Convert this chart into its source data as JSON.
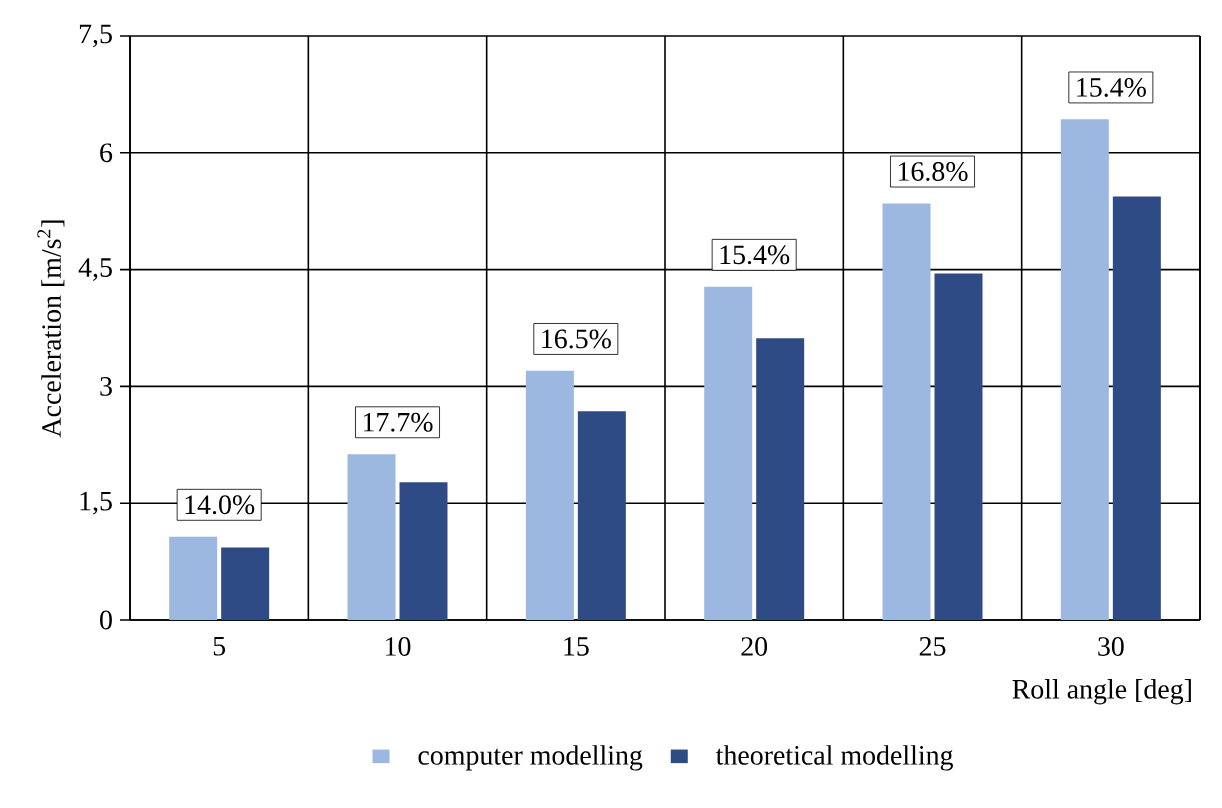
{
  "chart_data": {
    "type": "bar",
    "xlabel": "Roll angle [deg]",
    "ylabel": "Acceleration [m/s$^{2}$]",
    "categories": [
      "5",
      "10",
      "15",
      "20",
      "25",
      "30"
    ],
    "series": [
      {
        "name": "computer modelling",
        "color": "#9db8e0",
        "values": [
          1.07,
          2.13,
          3.2,
          4.28,
          5.35,
          6.43
        ]
      },
      {
        "name": "theoretical modelling",
        "color": "#2f4b85",
        "values": [
          0.93,
          1.77,
          2.68,
          3.62,
          4.45,
          5.44
        ]
      }
    ],
    "ylim": [
      0,
      7.5
    ],
    "yticks": [
      0,
      {
        "value": 1.5,
        "label": "1,5"
      },
      3,
      {
        "value": 4.5,
        "label": "4,5"
      },
      6,
      {
        "value": 7.5,
        "label": "7,5"
      }
    ],
    "grid": true,
    "legend": "bottom",
    "annotations": [
      {
        "text": "14.0%",
        "x": "5",
        "y": 1.07
      },
      {
        "text": "17.7%",
        "x": "10",
        "y": 2.13
      },
      {
        "text": "16.5%",
        "x": "15",
        "y": 3.2
      },
      {
        "text": "15.4%",
        "x": "20",
        "y": 4.28
      },
      {
        "text": "16.8%",
        "x": "25",
        "y": 5.35
      },
      {
        "text": "15.4%",
        "x": "30",
        "y": 6.43
      }
    ]
  }
}
